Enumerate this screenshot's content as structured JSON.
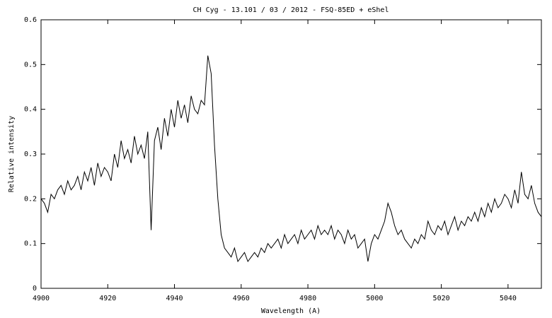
{
  "chart_data": {
    "type": "line",
    "title": "CH Cyg - 13.101 / 03 / 2012 - FSQ-85ED + eShel",
    "x_label": "Wavelength (A)",
    "y_label": "Relative intensity",
    "color": "#000000",
    "x": [
      4900,
      4901,
      4902,
      4903,
      4904,
      4905,
      4906,
      4907,
      4908,
      4909,
      4910,
      4911,
      4912,
      4913,
      4914,
      4915,
      4916,
      4917,
      4918,
      4919,
      4920,
      4921,
      4922,
      4923,
      4924,
      4925,
      4926,
      4927,
      4928,
      4929,
      4930,
      4931,
      4932,
      4933,
      4934,
      4935,
      4936,
      4937,
      4938,
      4939,
      4940,
      4941,
      4942,
      4943,
      4944,
      4945,
      4946,
      4947,
      4948,
      4949,
      4950,
      4951,
      4952,
      4953,
      4954,
      4955,
      4956,
      4957,
      4958,
      4959,
      4960,
      4961,
      4962,
      4963,
      4964,
      4965,
      4966,
      4967,
      4968,
      4969,
      4970,
      4971,
      4972,
      4973,
      4974,
      4975,
      4976,
      4977,
      4978,
      4979,
      4980,
      4981,
      4982,
      4983,
      4984,
      4985,
      4986,
      4987,
      4988,
      4989,
      4990,
      4991,
      4992,
      4993,
      4994,
      4995,
      4996,
      4997,
      4998,
      4999,
      5000,
      5001,
      5002,
      5003,
      5004,
      5005,
      5006,
      5007,
      5008,
      5009,
      5010,
      5011,
      5012,
      5013,
      5014,
      5015,
      5016,
      5017,
      5018,
      5019,
      5020,
      5021,
      5022,
      5023,
      5024,
      5025,
      5026,
      5027,
      5028,
      5029,
      5030,
      5031,
      5032,
      5033,
      5034,
      5035,
      5036,
      5037,
      5038,
      5039,
      5040,
      5041,
      5042,
      5043,
      5044,
      5045,
      5046,
      5047,
      5048,
      5049,
      5050
    ],
    "values": [
      0.2,
      0.19,
      0.17,
      0.21,
      0.2,
      0.22,
      0.23,
      0.21,
      0.24,
      0.22,
      0.23,
      0.25,
      0.22,
      0.26,
      0.24,
      0.27,
      0.23,
      0.28,
      0.25,
      0.27,
      0.26,
      0.24,
      0.3,
      0.27,
      0.33,
      0.29,
      0.31,
      0.28,
      0.34,
      0.3,
      0.32,
      0.29,
      0.35,
      0.13,
      0.33,
      0.36,
      0.31,
      0.38,
      0.34,
      0.4,
      0.36,
      0.42,
      0.38,
      0.41,
      0.37,
      0.43,
      0.4,
      0.39,
      0.42,
      0.41,
      0.52,
      0.48,
      0.32,
      0.2,
      0.12,
      0.09,
      0.08,
      0.07,
      0.09,
      0.06,
      0.07,
      0.08,
      0.06,
      0.07,
      0.08,
      0.07,
      0.09,
      0.08,
      0.1,
      0.09,
      0.1,
      0.11,
      0.09,
      0.12,
      0.1,
      0.11,
      0.12,
      0.1,
      0.13,
      0.11,
      0.12,
      0.13,
      0.11,
      0.14,
      0.12,
      0.13,
      0.12,
      0.14,
      0.11,
      0.13,
      0.12,
      0.1,
      0.13,
      0.11,
      0.12,
      0.09,
      0.1,
      0.11,
      0.06,
      0.1,
      0.12,
      0.11,
      0.13,
      0.15,
      0.19,
      0.17,
      0.14,
      0.12,
      0.13,
      0.11,
      0.1,
      0.09,
      0.11,
      0.1,
      0.12,
      0.11,
      0.15,
      0.13,
      0.12,
      0.14,
      0.13,
      0.15,
      0.12,
      0.14,
      0.16,
      0.13,
      0.15,
      0.14,
      0.16,
      0.15,
      0.17,
      0.15,
      0.18,
      0.16,
      0.19,
      0.17,
      0.2,
      0.18,
      0.19,
      0.21,
      0.2,
      0.18,
      0.22,
      0.19,
      0.26,
      0.21,
      0.2,
      0.23,
      0.19,
      0.17,
      0.16
    ],
    "xlim": [
      4900,
      5050
    ],
    "xticks": [
      4900,
      4920,
      4940,
      4960,
      4980,
      5000,
      5020,
      5040
    ],
    "ylim": [
      0,
      0.6
    ],
    "yticks": [
      0,
      0.1,
      0.2,
      0.3,
      0.4,
      0.5,
      0.6
    ]
  }
}
